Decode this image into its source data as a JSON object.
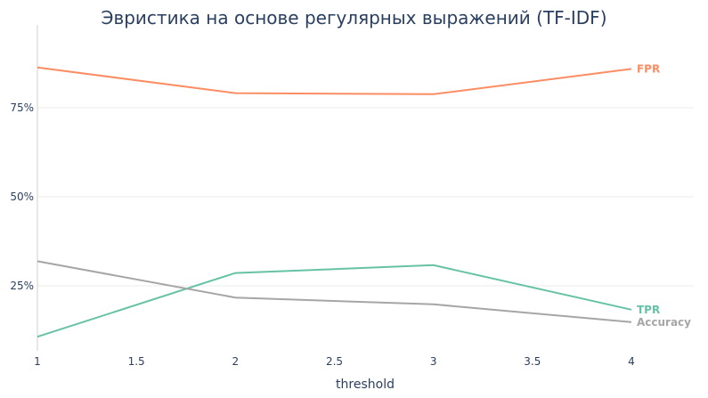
{
  "chart_data": {
    "type": "line",
    "title": "Эвристика на основе регулярных выражений (TF-IDF)",
    "xlabel": "threshold",
    "ylabel": "",
    "x": [
      1,
      2,
      3,
      4
    ],
    "xticks": [
      "1",
      "1.5",
      "2",
      "2.5",
      "3",
      "3.5",
      "4"
    ],
    "yticks": [
      "25%",
      "50%",
      "75%"
    ],
    "xlim": [
      1,
      4.3
    ],
    "ylim": [
      0.065,
      0.925
    ],
    "grid": true,
    "legend": "inline labels at line ends",
    "series": [
      {
        "name": "FPR",
        "color": "#fc8d62",
        "values": [
          0.863,
          0.791,
          0.788,
          0.859
        ]
      },
      {
        "name": "TPR",
        "color": "#66c2a5",
        "values": [
          0.107,
          0.286,
          0.308,
          0.183
        ]
      },
      {
        "name": "Accuracy",
        "color": "#a6a6a6",
        "values": [
          0.319,
          0.217,
          0.198,
          0.148
        ]
      }
    ]
  }
}
